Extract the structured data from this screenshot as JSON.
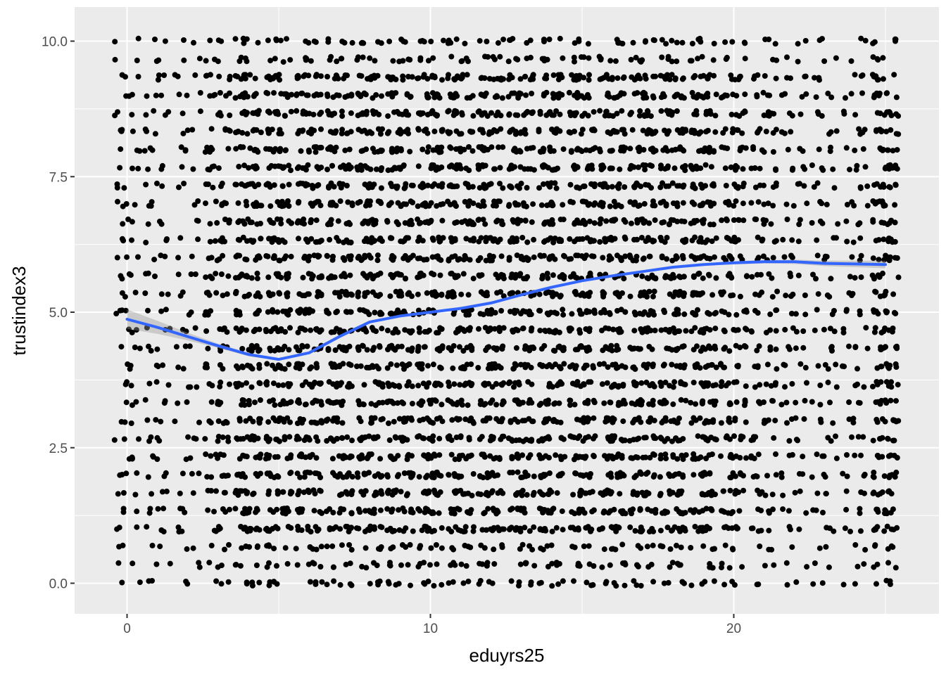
{
  "chart_data": {
    "type": "scatter",
    "title": "",
    "xlabel": "eduyrs25",
    "ylabel": "trustindex3",
    "xlim": [
      -1.5,
      25.5
    ],
    "ylim": [
      -0.55,
      10.5
    ],
    "x_ticks": [
      0,
      10,
      20
    ],
    "y_ticks": [
      0.0,
      2.5,
      5.0,
      7.5,
      10.0
    ],
    "x_tick_labels": [
      "0",
      "10",
      "20"
    ],
    "y_tick_labels": [
      "0.0",
      "2.5",
      "5.0",
      "7.5",
      "10.0"
    ],
    "grid": true,
    "background": "#ebebeb",
    "point_color": "#000000",
    "points": {
      "description": "jittered integer eduyrs25 (0-25) vs trustindex3 on a discrete grid of steps of 1/3 (0 to 10); dense mass between x=4 and x=21",
      "x_range": [
        0,
        25
      ],
      "y_step": 0.3333,
      "y_range": [
        0,
        10
      ]
    },
    "series": [
      {
        "type": "smooth",
        "color": "#3366ff",
        "ribbon_color": "#999999",
        "x": [
          0,
          1,
          2,
          3,
          4,
          5,
          6,
          7,
          8,
          9,
          10,
          11,
          12,
          13,
          14,
          15,
          16,
          17,
          18,
          19,
          20,
          21,
          22,
          23,
          24,
          25
        ],
        "y": [
          4.87,
          4.72,
          4.55,
          4.38,
          4.22,
          4.13,
          4.25,
          4.55,
          4.82,
          4.93,
          5.0,
          5.07,
          5.17,
          5.32,
          5.46,
          5.58,
          5.67,
          5.75,
          5.83,
          5.88,
          5.91,
          5.93,
          5.93,
          5.9,
          5.89,
          5.88
        ],
        "ribbon_halfwidth": [
          0.18,
          0.12,
          0.07,
          0.04,
          0.03,
          0.02,
          0.02,
          0.02,
          0.02,
          0.02,
          0.02,
          0.02,
          0.02,
          0.02,
          0.02,
          0.02,
          0.02,
          0.02,
          0.02,
          0.02,
          0.03,
          0.03,
          0.04,
          0.05,
          0.06,
          0.07
        ]
      }
    ]
  }
}
